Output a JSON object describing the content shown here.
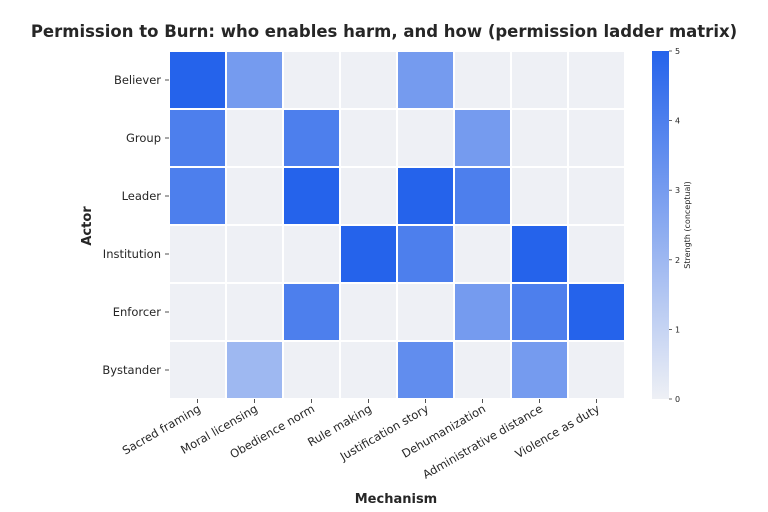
{
  "chart_data": {
    "type": "heatmap",
    "title": "Permission to Burn: who enables harm, and how (permission ladder matrix)",
    "xlabel": "Mechanism",
    "ylabel": "Actor",
    "x_categories": [
      "Sacred framing",
      "Moral licensing",
      "Obedience norm",
      "Rule making",
      "Justification story",
      "Dehumanization",
      "Administrative distance",
      "Violence as duty"
    ],
    "y_categories": [
      "Believer",
      "Group",
      "Leader",
      "Institution",
      "Enforcer",
      "Bystander"
    ],
    "values": [
      [
        5,
        3,
        0,
        0,
        3,
        0,
        0,
        0
      ],
      [
        4,
        0,
        4,
        0,
        0,
        3,
        0,
        0
      ],
      [
        4,
        0,
        5,
        0,
        5,
        4,
        0,
        0
      ],
      [
        0,
        0,
        0,
        5,
        4,
        0,
        5,
        0
      ],
      [
        0,
        0,
        4,
        0,
        0,
        3,
        4,
        5
      ],
      [
        0,
        2,
        0,
        0,
        3.5,
        0,
        3,
        0
      ]
    ],
    "colorbar": {
      "label": "Strength (conceptual)",
      "range": [
        0,
        5
      ],
      "ticks": [
        "0",
        "1",
        "2",
        "3",
        "4",
        "5"
      ],
      "color_low": "#eef0f5",
      "color_high": "#2563eb"
    },
    "grid": true
  }
}
